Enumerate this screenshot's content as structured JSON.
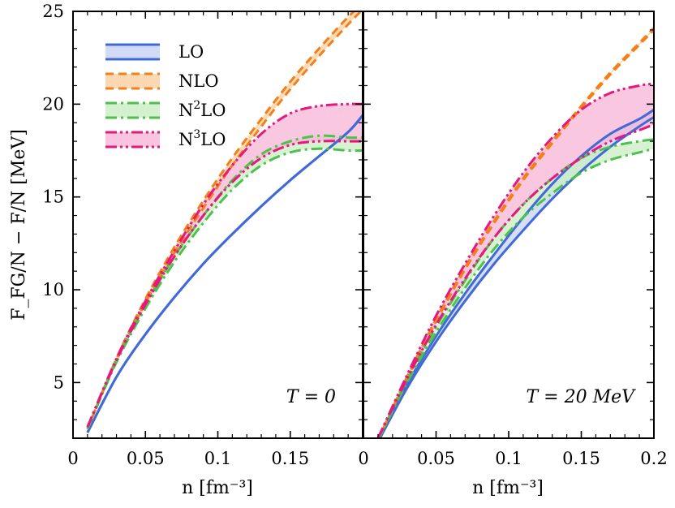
{
  "chart_data": {
    "type": "line",
    "ylabel": "F_FG/N − F/N [MeV]",
    "xlabel": "n [fm⁻³]",
    "ylim": [
      2,
      25
    ],
    "yticks": [
      5,
      10,
      15,
      20,
      25
    ],
    "legend": [
      {
        "key": "LO",
        "label": "LO",
        "sup": "",
        "color": "#4169d8",
        "fill": "#c7d3f4",
        "dash": ""
      },
      {
        "key": "NLO",
        "label": "NLO",
        "sup": "",
        "color": "#f57f17",
        "fill": "#f9cf9f",
        "dash": "10,6"
      },
      {
        "key": "N2LO",
        "label": "N",
        "sup": "2",
        "suffix": "LO",
        "color": "#4cc24c",
        "fill": "#c9ecc3",
        "dash": "14,5,3,5"
      },
      {
        "key": "N3LO",
        "label": "N",
        "sup": "3",
        "suffix": "LO",
        "color": "#e8177d",
        "fill": "#f7b5d6",
        "dash": "14,4,3,4,3,4"
      }
    ],
    "panels": [
      {
        "annotation": "T = 0",
        "xlim": [
          0,
          0.2
        ],
        "xticks": [
          "0",
          "0.05",
          "0.1",
          "0.15",
          ""
        ],
        "x": [
          0.01,
          0.03,
          0.05,
          0.07,
          0.09,
          0.11,
          0.13,
          0.15,
          0.17,
          0.19,
          0.2
        ],
        "series": [
          {
            "key": "LO",
            "lower": [
              2.3,
              5.3,
              7.6,
              9.6,
              11.4,
              13.0,
              14.5,
              15.9,
              17.2,
              18.5,
              19.4
            ],
            "upper": [
              2.3,
              5.3,
              7.6,
              9.6,
              11.4,
              13.0,
              14.5,
              15.9,
              17.2,
              18.5,
              19.4
            ]
          },
          {
            "key": "NLO",
            "lower": [
              2.5,
              6.2,
              9.3,
              12.0,
              14.4,
              16.7,
              18.8,
              20.8,
              22.6,
              24.3,
              25.1
            ],
            "upper": [
              2.5,
              6.3,
              9.5,
              12.3,
              14.8,
              17.1,
              19.2,
              21.2,
              23.0,
              24.7,
              25.4
            ]
          },
          {
            "key": "N2LO",
            "lower": [
              2.5,
              6.1,
              9.0,
              11.5,
              13.6,
              15.4,
              16.7,
              17.4,
              17.6,
              17.5,
              17.5
            ],
            "upper": [
              2.5,
              6.2,
              9.2,
              11.8,
              14.0,
              15.9,
              17.3,
              18.0,
              18.3,
              18.2,
              18.2
            ]
          },
          {
            "key": "N3LO",
            "lower": [
              2.6,
              6.2,
              9.2,
              11.8,
              14.0,
              15.8,
              17.1,
              17.8,
              18.0,
              18.0,
              18.0
            ],
            "upper": [
              2.6,
              6.3,
              9.4,
              12.1,
              14.6,
              16.7,
              18.4,
              19.5,
              19.9,
              20.0,
              20.0
            ]
          }
        ]
      },
      {
        "annotation": "T = 20 MeV",
        "xlim": [
          0,
          0.2
        ],
        "xticks": [
          "0",
          "0.05",
          "0.1",
          "0.15",
          "0.2"
        ],
        "x": [
          0.01,
          0.03,
          0.05,
          0.07,
          0.09,
          0.11,
          0.13,
          0.15,
          0.17,
          0.19,
          0.2
        ],
        "series": [
          {
            "key": "LO",
            "lower": [
              1.8,
              4.7,
              7.2,
              9.4,
              11.4,
              13.2,
              14.9,
              16.4,
              17.7,
              18.8,
              19.3
            ],
            "upper": [
              1.9,
              4.9,
              7.5,
              9.8,
              11.9,
              13.9,
              15.7,
              17.2,
              18.4,
              19.2,
              19.7
            ]
          },
          {
            "key": "NLO",
            "lower": [
              1.9,
              5.2,
              8.3,
              11.1,
              13.6,
              15.9,
              17.9,
              19.8,
              21.6,
              23.2,
              24.0
            ],
            "upper": [
              1.9,
              5.3,
              8.4,
              11.2,
              13.7,
              16.0,
              18.0,
              19.9,
              21.7,
              23.3,
              24.1
            ]
          },
          {
            "key": "N2LO",
            "lower": [
              1.9,
              5.0,
              7.7,
              10.1,
              12.2,
              13.9,
              15.2,
              16.3,
              17.0,
              17.4,
              17.6
            ],
            "upper": [
              1.9,
              5.1,
              8.0,
              10.5,
              12.8,
              14.6,
              16.0,
              17.1,
              17.7,
              18.0,
              18.1
            ]
          },
          {
            "key": "N3LO",
            "lower": [
              2.0,
              5.2,
              8.1,
              10.6,
              12.8,
              14.6,
              16.0,
              17.1,
              18.0,
              18.6,
              18.9
            ],
            "upper": [
              2.0,
              5.4,
              8.6,
              11.4,
              14.0,
              16.3,
              18.2,
              19.7,
              20.6,
              21.0,
              21.1
            ]
          }
        ]
      }
    ]
  }
}
